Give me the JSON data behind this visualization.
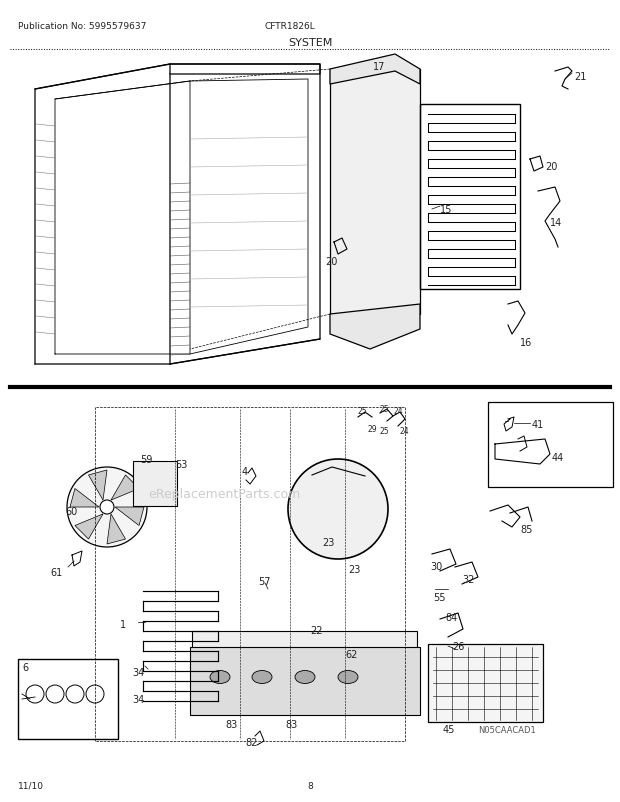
{
  "title": "SYSTEM",
  "header_left": "Publication No: 5995579637",
  "header_center": "CFTR1826L",
  "footer_left": "11/10",
  "footer_center": "8",
  "watermark": "eReplacementParts.com",
  "bg_color": "#ffffff",
  "line_color": "#000000",
  "text_color": "#222222",
  "diagram_color": "#333333"
}
